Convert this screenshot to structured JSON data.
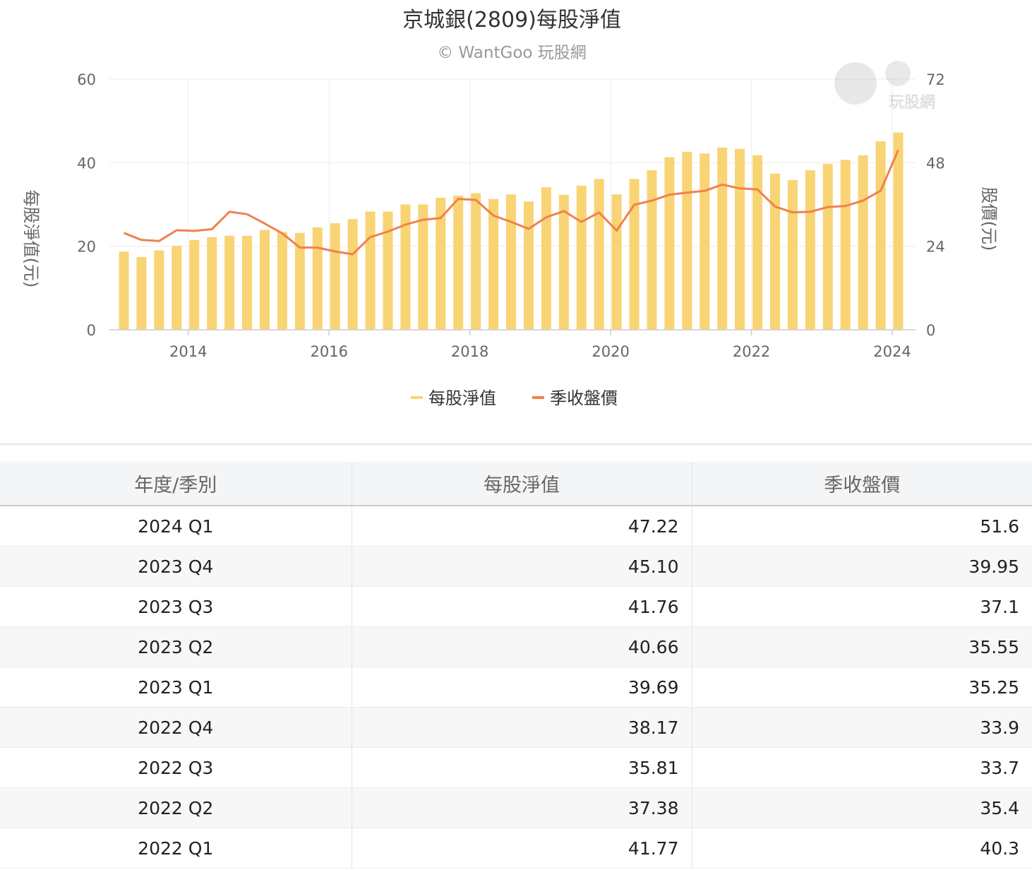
{
  "chart_data": {
    "type": "bar+line",
    "title": "京城銀(2809)每股淨值",
    "subtitle": "© WantGoo 玩股網",
    "watermark_text": "玩股網",
    "ylabel_left": "每股淨值(元)",
    "ylabel_right": "股價(元)",
    "left_ticks": [
      "0",
      "20",
      "40",
      "60"
    ],
    "right_ticks": [
      "0",
      "24",
      "48",
      "72"
    ],
    "ylim_left": [
      0,
      60
    ],
    "ylim_right": [
      0,
      72
    ],
    "x_ticks": [
      "2014",
      "2016",
      "2018",
      "2020",
      "2022",
      "2024"
    ],
    "legend_position": "bottom-center",
    "grid": true,
    "series": [
      {
        "name": "每股淨值",
        "type": "bar",
        "axis": "left",
        "color": "#f8d475",
        "quarters": [
          "2013 Q1",
          "2013 Q2",
          "2013 Q3",
          "2013 Q4",
          "2014 Q1",
          "2014 Q2",
          "2014 Q3",
          "2014 Q4",
          "2015 Q1",
          "2015 Q2",
          "2015 Q3",
          "2015 Q4",
          "2016 Q1",
          "2016 Q2",
          "2016 Q3",
          "2016 Q4",
          "2017 Q1",
          "2017 Q2",
          "2017 Q3",
          "2017 Q4",
          "2018 Q1",
          "2018 Q2",
          "2018 Q3",
          "2018 Q4",
          "2019 Q1",
          "2019 Q2",
          "2019 Q3",
          "2019 Q4",
          "2020 Q1",
          "2020 Q2",
          "2020 Q3",
          "2020 Q4",
          "2021 Q1",
          "2021 Q2",
          "2021 Q3",
          "2021 Q4",
          "2022 Q1",
          "2022 Q2",
          "2022 Q3",
          "2022 Q4",
          "2023 Q1",
          "2023 Q2",
          "2023 Q3",
          "2023 Q4",
          "2024 Q1"
        ],
        "values": [
          18.7,
          17.4,
          19.0,
          20.1,
          21.5,
          22.2,
          22.5,
          22.5,
          23.9,
          23.4,
          23.2,
          24.5,
          25.5,
          26.5,
          28.3,
          28.3,
          30.0,
          30.0,
          31.6,
          32.1,
          32.7,
          31.3,
          32.4,
          30.7,
          34.1,
          32.3,
          34.5,
          36.1,
          32.4,
          36.1,
          38.2,
          41.3,
          42.6,
          42.2,
          43.6,
          43.3,
          41.77,
          37.38,
          35.81,
          38.17,
          39.69,
          40.66,
          41.76,
          45.1,
          47.22
        ]
      },
      {
        "name": "季收盤價",
        "type": "line",
        "axis": "right",
        "color": "#f0824d",
        "values": [
          27.8,
          25.8,
          25.5,
          28.6,
          28.4,
          28.9,
          33.9,
          33.2,
          30.5,
          27.7,
          23.6,
          23.6,
          22.5,
          21.7,
          26.6,
          28.2,
          30.2,
          31.6,
          32.1,
          37.6,
          37.3,
          32.8,
          31.0,
          29.0,
          32.3,
          34.1,
          31.0,
          33.7,
          28.5,
          35.9,
          37.1,
          38.8,
          39.4,
          39.9,
          41.7,
          40.6,
          40.3,
          35.4,
          33.7,
          33.9,
          35.25,
          35.55,
          37.1,
          39.95,
          51.6
        ]
      }
    ]
  },
  "table": {
    "headers": [
      "年度/季別",
      "每股淨值",
      "季收盤價"
    ],
    "rows": [
      [
        "2024 Q1",
        "47.22",
        "51.6"
      ],
      [
        "2023 Q4",
        "45.10",
        "39.95"
      ],
      [
        "2023 Q3",
        "41.76",
        "37.1"
      ],
      [
        "2023 Q2",
        "40.66",
        "35.55"
      ],
      [
        "2023 Q1",
        "39.69",
        "35.25"
      ],
      [
        "2022 Q4",
        "38.17",
        "33.9"
      ],
      [
        "2022 Q3",
        "35.81",
        "33.7"
      ],
      [
        "2022 Q2",
        "37.38",
        "35.4"
      ],
      [
        "2022 Q1",
        "41.77",
        "40.3"
      ]
    ]
  }
}
